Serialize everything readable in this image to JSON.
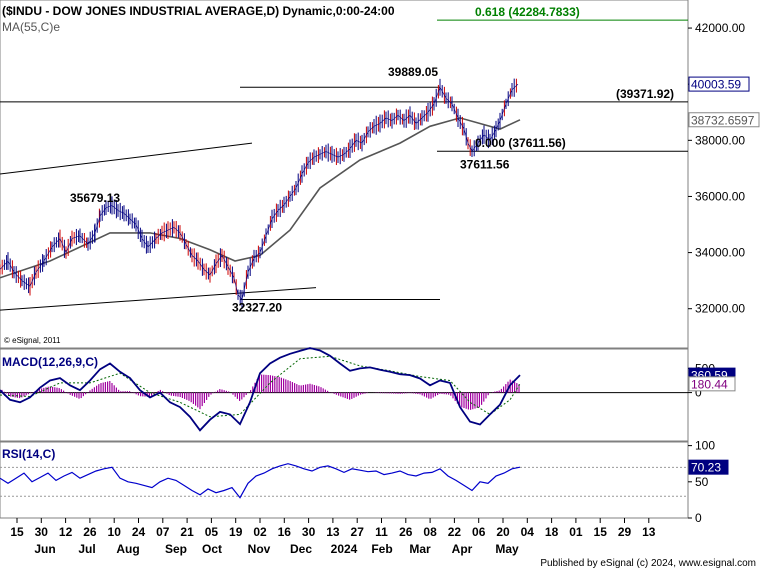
{
  "chart_data": [
    {
      "type": "candlestick",
      "title": "($INDU - DOW JONES INDUSTRIAL AVERAGE,D) Dynamic,0:00-24:00",
      "indicator": "MA(55,C)e",
      "watermark": "© eSignal, 2011",
      "ylim": [
        30600,
        43000
      ],
      "y_ticks": [
        "32000.00",
        "34000.00",
        "36000.00",
        "38000.00",
        "40000.00",
        "42000.00"
      ],
      "x_ticks": [
        "15",
        "30",
        "12",
        "26",
        "10",
        "24",
        "07",
        "21",
        "05",
        "19",
        "02",
        "16",
        "30",
        "13",
        "27",
        "11",
        "26",
        "08",
        "22",
        "06",
        "20",
        "04",
        "18",
        "01",
        "15",
        "29",
        "13"
      ],
      "x_months": [
        "Jun",
        "Jul",
        "Aug",
        "Sep",
        "Oct",
        "Nov",
        "Dec",
        "2024",
        "Feb",
        "Mar",
        "Apr",
        "May"
      ],
      "price_path": [
        [
          0,
          33400
        ],
        [
          8,
          33700
        ],
        [
          14,
          33300
        ],
        [
          22,
          33000
        ],
        [
          30,
          32800
        ],
        [
          36,
          33300
        ],
        [
          44,
          33700
        ],
        [
          52,
          34200
        ],
        [
          60,
          34500
        ],
        [
          66,
          34000
        ],
        [
          72,
          34500
        ],
        [
          80,
          34600
        ],
        [
          88,
          34300
        ],
        [
          95,
          34700
        ],
        [
          100,
          35300
        ],
        [
          106,
          35600
        ],
        [
          112,
          35679
        ],
        [
          118,
          35500
        ],
        [
          124,
          35400
        ],
        [
          130,
          35200
        ],
        [
          136,
          35000
        ],
        [
          142,
          34500
        ],
        [
          148,
          34200
        ],
        [
          156,
          34500
        ],
        [
          162,
          34700
        ],
        [
          168,
          34800
        ],
        [
          174,
          34900
        ],
        [
          180,
          34700
        ],
        [
          186,
          34300
        ],
        [
          192,
          33900
        ],
        [
          198,
          33700
        ],
        [
          204,
          33400
        ],
        [
          210,
          33200
        ],
        [
          216,
          33600
        ],
        [
          222,
          33900
        ],
        [
          228,
          33500
        ],
        [
          234,
          33100
        ],
        [
          238,
          32500
        ],
        [
          242,
          32327
        ],
        [
          248,
          33300
        ],
        [
          254,
          33800
        ],
        [
          260,
          34000
        ],
        [
          266,
          34600
        ],
        [
          272,
          35200
        ],
        [
          278,
          35500
        ],
        [
          284,
          35700
        ],
        [
          290,
          36000
        ],
        [
          296,
          36300
        ],
        [
          302,
          36800
        ],
        [
          308,
          37200
        ],
        [
          314,
          37400
        ],
        [
          320,
          37500
        ],
        [
          326,
          37600
        ],
        [
          332,
          37500
        ],
        [
          338,
          37400
        ],
        [
          344,
          37500
        ],
        [
          350,
          37700
        ],
        [
          356,
          38000
        ],
        [
          362,
          37900
        ],
        [
          368,
          38300
        ],
        [
          374,
          38500
        ],
        [
          380,
          38600
        ],
        [
          386,
          38800
        ],
        [
          392,
          38700
        ],
        [
          398,
          38900
        ],
        [
          404,
          38700
        ],
        [
          410,
          38900
        ],
        [
          416,
          38600
        ],
        [
          422,
          38800
        ],
        [
          428,
          39000
        ],
        [
          434,
          39300
        ],
        [
          440,
          39889
        ],
        [
          446,
          39500
        ],
        [
          452,
          39300
        ],
        [
          458,
          38800
        ],
        [
          464,
          38400
        ],
        [
          468,
          37900
        ],
        [
          472,
          37611
        ],
        [
          478,
          37900
        ],
        [
          484,
          38200
        ],
        [
          490,
          38000
        ],
        [
          496,
          38400
        ],
        [
          500,
          38700
        ],
        [
          506,
          39300
        ],
        [
          512,
          39800
        ],
        [
          518,
          40003
        ]
      ],
      "ma_path": [
        [
          0,
          33100
        ],
        [
          50,
          33700
        ],
        [
          80,
          34200
        ],
        [
          110,
          34700
        ],
        [
          150,
          34700
        ],
        [
          180,
          34500
        ],
        [
          210,
          34100
        ],
        [
          235,
          33700
        ],
        [
          260,
          33900
        ],
        [
          290,
          34800
        ],
        [
          320,
          36300
        ],
        [
          360,
          37300
        ],
        [
          400,
          37900
        ],
        [
          430,
          38500
        ],
        [
          460,
          38800
        ],
        [
          480,
          38600
        ],
        [
          500,
          38400
        ],
        [
          520,
          38732
        ]
      ],
      "hlines": [
        {
          "y": 42284.7833,
          "label": "0.618 (42284.7833)",
          "color": "#008000",
          "from": 437,
          "to": 688
        },
        {
          "y": 39371.92,
          "label": "(39371.92)",
          "color": "#000000",
          "from": 0,
          "to": 688
        },
        {
          "y": 37611.56,
          "label": "0.000 (37611.56)",
          "color": "#000000",
          "from": 437,
          "to": 688
        },
        {
          "y": 39889.05,
          "label": "",
          "color": "#000000",
          "from": 240,
          "to": 440
        },
        {
          "y": 32327.2,
          "label": "",
          "color": "#000000",
          "from": 240,
          "to": 440
        }
      ],
      "trendlines": [
        {
          "from": [
            0,
            36800
          ],
          "to": [
            252,
            37900
          ]
        },
        {
          "from": [
            0,
            31950
          ],
          "to": [
            316,
            32750
          ]
        }
      ],
      "annotations": [
        {
          "text": "35679.13",
          "x": 70,
          "y": 35800
        },
        {
          "text": "39889.05",
          "x": 388,
          "y": 40300
        },
        {
          "text": "37611.56",
          "x": 460,
          "y": 37000
        },
        {
          "text": "32327.20",
          "x": 232,
          "y": 31900
        }
      ],
      "last_values": [
        {
          "text": "40003.59",
          "y": 40003.59,
          "bg": "#ffffff",
          "fg": "#000080",
          "border": "#000080"
        },
        {
          "text": "38732.6597",
          "y": 38732.6597,
          "bg": "#ffffff",
          "fg": "#555555",
          "border": "#888888"
        }
      ]
    },
    {
      "type": "line",
      "title": "MACD(12,26,9,C)",
      "ylim": [
        -1000,
        900
      ],
      "y_ticks": [
        "500",
        "0"
      ],
      "macd_path": [
        [
          0,
          50
        ],
        [
          10,
          -150
        ],
        [
          20,
          -200
        ],
        [
          30,
          -100
        ],
        [
          40,
          100
        ],
        [
          50,
          250
        ],
        [
          60,
          300
        ],
        [
          70,
          150
        ],
        [
          80,
          50
        ],
        [
          90,
          250
        ],
        [
          100,
          480
        ],
        [
          110,
          600
        ],
        [
          120,
          430
        ],
        [
          130,
          300
        ],
        [
          140,
          50
        ],
        [
          150,
          -100
        ],
        [
          160,
          0
        ],
        [
          170,
          -200
        ],
        [
          180,
          -300
        ],
        [
          190,
          -500
        ],
        [
          200,
          -780
        ],
        [
          210,
          -560
        ],
        [
          220,
          -400
        ],
        [
          230,
          -450
        ],
        [
          240,
          -650
        ],
        [
          250,
          -200
        ],
        [
          260,
          400
        ],
        [
          270,
          600
        ],
        [
          280,
          720
        ],
        [
          290,
          800
        ],
        [
          300,
          860
        ],
        [
          310,
          920
        ],
        [
          320,
          870
        ],
        [
          330,
          760
        ],
        [
          340,
          600
        ],
        [
          350,
          450
        ],
        [
          360,
          500
        ],
        [
          370,
          520
        ],
        [
          380,
          470
        ],
        [
          390,
          430
        ],
        [
          400,
          380
        ],
        [
          410,
          360
        ],
        [
          420,
          290
        ],
        [
          430,
          150
        ],
        [
          440,
          250
        ],
        [
          450,
          200
        ],
        [
          460,
          -300
        ],
        [
          470,
          -600
        ],
        [
          480,
          -660
        ],
        [
          490,
          -450
        ],
        [
          500,
          -250
        ],
        [
          510,
          150
        ],
        [
          520,
          360
        ]
      ],
      "signal_path": [
        [
          0,
          -50
        ],
        [
          30,
          -80
        ],
        [
          60,
          200
        ],
        [
          90,
          200
        ],
        [
          120,
          400
        ],
        [
          150,
          0
        ],
        [
          180,
          -200
        ],
        [
          210,
          -500
        ],
        [
          240,
          -450
        ],
        [
          270,
          200
        ],
        [
          300,
          700
        ],
        [
          330,
          750
        ],
        [
          360,
          550
        ],
        [
          390,
          450
        ],
        [
          420,
          330
        ],
        [
          450,
          250
        ],
        [
          470,
          -200
        ],
        [
          490,
          -450
        ],
        [
          510,
          -150
        ],
        [
          520,
          180
        ]
      ],
      "last_values": [
        {
          "text": "360.59",
          "y": 360.59,
          "bg": "#000080",
          "fg": "#ffffff",
          "border": "#000080"
        },
        {
          "text": "180.44",
          "y": 180.44,
          "bg": "#ffffff",
          "fg": "#800080",
          "border": "#888888"
        }
      ]
    },
    {
      "type": "line",
      "title": "RSI(14,C)",
      "ylim": [
        0,
        105
      ],
      "y_ticks": [
        "100",
        "50",
        "0"
      ],
      "rsi_path": [
        [
          0,
          55
        ],
        [
          8,
          48
        ],
        [
          16,
          55
        ],
        [
          24,
          62
        ],
        [
          32,
          50
        ],
        [
          40,
          56
        ],
        [
          48,
          62
        ],
        [
          56,
          52
        ],
        [
          64,
          58
        ],
        [
          72,
          63
        ],
        [
          80,
          55
        ],
        [
          88,
          60
        ],
        [
          96,
          65
        ],
        [
          104,
          68
        ],
        [
          112,
          70
        ],
        [
          120,
          55
        ],
        [
          128,
          50
        ],
        [
          136,
          48
        ],
        [
          144,
          45
        ],
        [
          152,
          42
        ],
        [
          160,
          50
        ],
        [
          168,
          55
        ],
        [
          176,
          52
        ],
        [
          184,
          45
        ],
        [
          192,
          38
        ],
        [
          200,
          32
        ],
        [
          208,
          40
        ],
        [
          216,
          35
        ],
        [
          224,
          38
        ],
        [
          232,
          42
        ],
        [
          240,
          28
        ],
        [
          248,
          48
        ],
        [
          256,
          58
        ],
        [
          264,
          62
        ],
        [
          272,
          68
        ],
        [
          280,
          72
        ],
        [
          288,
          75
        ],
        [
          296,
          72
        ],
        [
          304,
          68
        ],
        [
          312,
          65
        ],
        [
          320,
          70
        ],
        [
          328,
          72
        ],
        [
          336,
          68
        ],
        [
          344,
          63
        ],
        [
          352,
          68
        ],
        [
          360,
          66
        ],
        [
          368,
          64
        ],
        [
          376,
          65
        ],
        [
          384,
          60
        ],
        [
          392,
          62
        ],
        [
          400,
          65
        ],
        [
          408,
          60
        ],
        [
          416,
          58
        ],
        [
          424,
          62
        ],
        [
          432,
          63
        ],
        [
          440,
          68
        ],
        [
          448,
          58
        ],
        [
          456,
          52
        ],
        [
          464,
          45
        ],
        [
          472,
          38
        ],
        [
          480,
          50
        ],
        [
          488,
          48
        ],
        [
          496,
          58
        ],
        [
          504,
          62
        ],
        [
          512,
          68
        ],
        [
          520,
          70.23
        ]
      ],
      "last_values": [
        {
          "text": "70.23",
          "y": 70.23,
          "bg": "#000080",
          "fg": "#ffffff",
          "border": "#000080"
        }
      ]
    }
  ],
  "footer": {
    "published": "Published by eSignal (c) 2024, www.esignal.com"
  }
}
